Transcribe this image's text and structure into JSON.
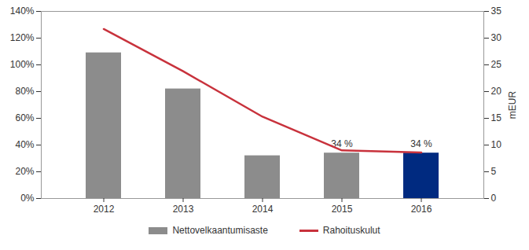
{
  "chart_data": {
    "type": "bar",
    "categories": [
      "2012",
      "2013",
      "2014",
      "2015",
      "2016"
    ],
    "series": [
      {
        "name": "Nettovelkaantumisaste",
        "type": "bar",
        "colors": [
          "#8c8c8c",
          "#8c8c8c",
          "#8c8c8c",
          "#8c8c8c",
          "#002a80"
        ],
        "values": [
          109,
          82,
          32,
          34,
          34
        ],
        "value_labels": [
          null,
          null,
          null,
          "34 %",
          "34 %"
        ]
      },
      {
        "name": "Rahoituskulut",
        "type": "line",
        "color": "#c8323c",
        "axis": "y2",
        "values": [
          31.7,
          23.8,
          15.3,
          9.0,
          8.6
        ]
      }
    ],
    "ylim": [
      0,
      140
    ],
    "yticks": [
      {
        "value": 0,
        "label": "0%"
      },
      {
        "value": 20,
        "label": "20%"
      },
      {
        "value": 40,
        "label": "40%"
      },
      {
        "value": 60,
        "label": "60%"
      },
      {
        "value": 80,
        "label": "80%"
      },
      {
        "value": 100,
        "label": "100%"
      },
      {
        "value": 120,
        "label": "120%"
      },
      {
        "value": 140,
        "label": "140%"
      }
    ],
    "y2lim": [
      0,
      35
    ],
    "y2ticks": [
      0,
      5,
      10,
      15,
      20,
      25,
      30,
      35
    ],
    "y2label": "mEUR",
    "legend": "bottom",
    "grid": false,
    "data_labels": true
  }
}
